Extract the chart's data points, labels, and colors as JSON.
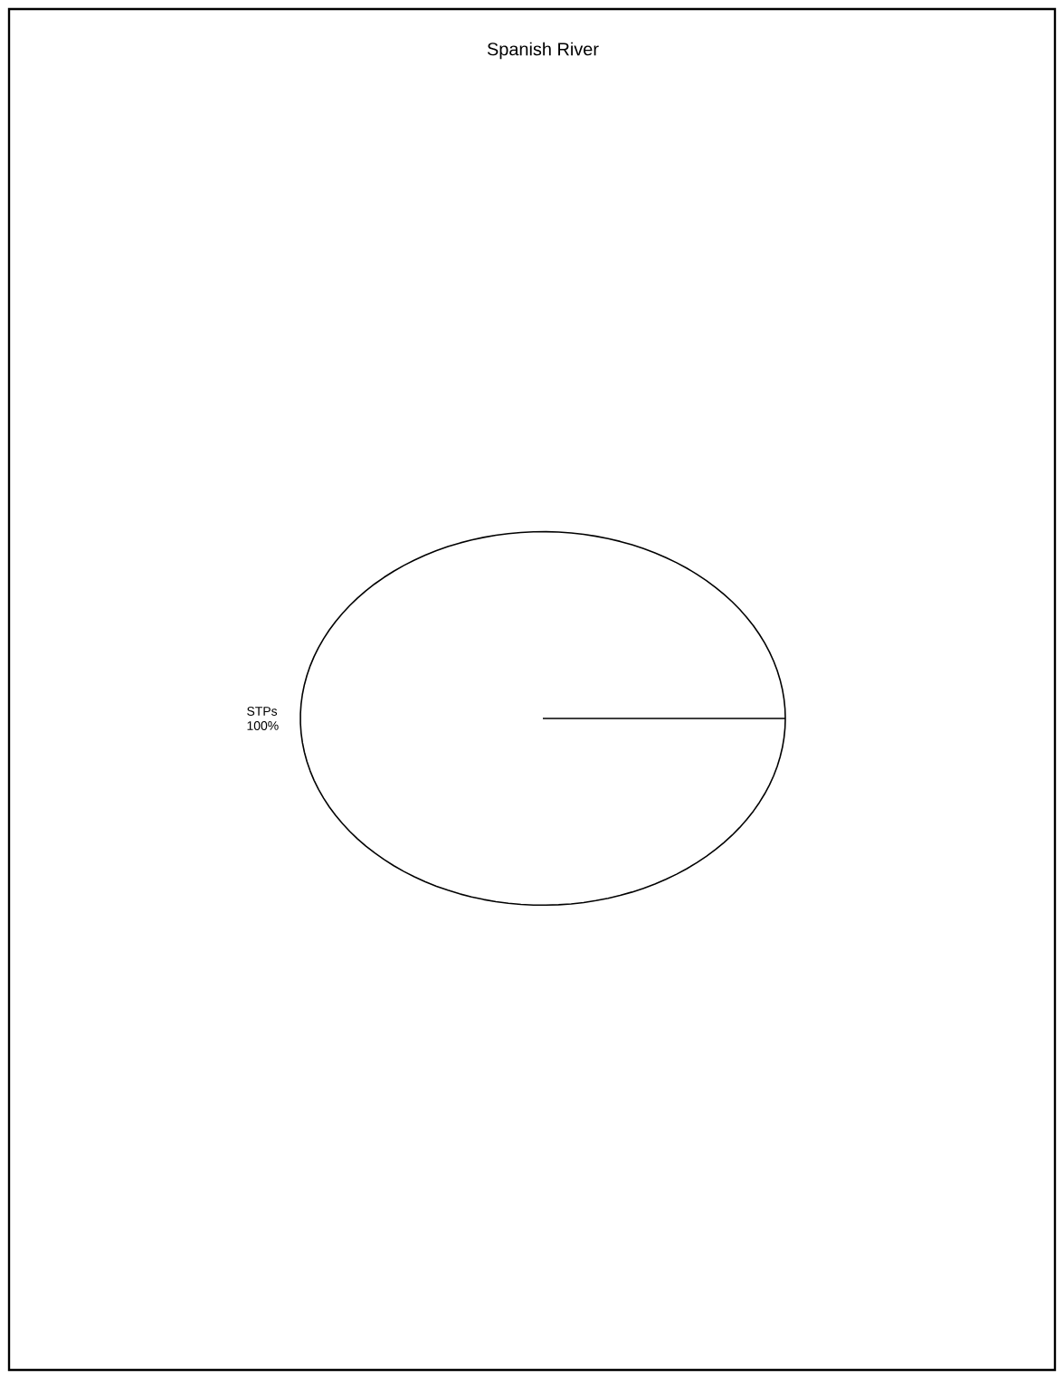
{
  "chart_data": {
    "type": "pie",
    "title": "Spanish River",
    "categories": [
      "STPs"
    ],
    "values": [
      100
    ],
    "colors": [
      "#ffffff"
    ],
    "value_labels": [
      "100%"
    ]
  }
}
